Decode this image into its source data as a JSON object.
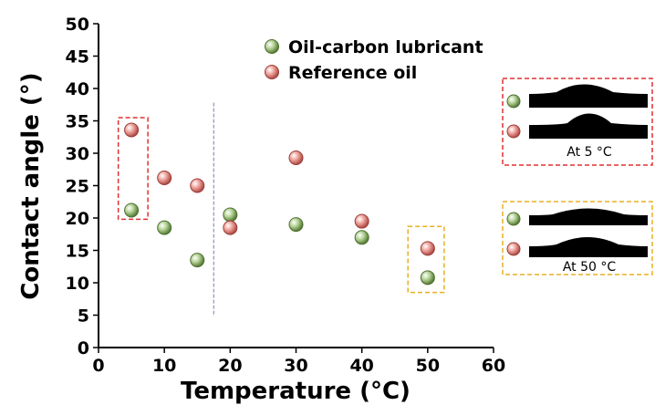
{
  "chart_data": {
    "type": "scatter",
    "xlabel": "Temperature (°C)",
    "ylabel": "Contact angle (°)",
    "xlim": [
      0,
      60
    ],
    "ylim": [
      0,
      50
    ],
    "xticks": [
      0,
      10,
      20,
      30,
      40,
      50,
      60
    ],
    "yticks": [
      0,
      5,
      10,
      15,
      20,
      25,
      30,
      35,
      40,
      45,
      50
    ],
    "grid": false,
    "legend_position": "top-right",
    "series": [
      {
        "name": "Oil-carbon lubricant",
        "color": "#6f9a4a",
        "x": [
          5,
          10,
          15,
          20,
          30,
          40,
          50
        ],
        "y": [
          21.2,
          18.5,
          13.5,
          20.5,
          19.0,
          17.0,
          10.8
        ]
      },
      {
        "name": "Reference oil",
        "color": "#d0605a",
        "x": [
          5,
          10,
          15,
          20,
          30,
          40,
          50
        ],
        "y": [
          33.6,
          26.2,
          25.0,
          18.5,
          29.3,
          19.5,
          15.3
        ]
      }
    ],
    "annotations": {
      "divider_x": 17.5,
      "highlight_boxes": [
        {
          "x": [
            3,
            7.5
          ],
          "y": [
            19.8,
            35.5
          ],
          "color": "#e03030"
        },
        {
          "x": [
            47,
            52.5
          ],
          "y": [
            8.5,
            18.7
          ],
          "color": "#e8b020"
        }
      ]
    },
    "insets": [
      {
        "label": "At 5 °C",
        "border_color": "#e03030"
      },
      {
        "label": "At 50 °C",
        "border_color": "#e8b020"
      }
    ]
  }
}
